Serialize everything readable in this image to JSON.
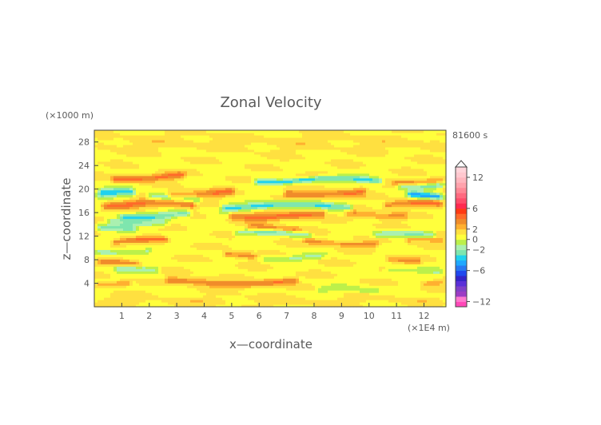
{
  "chart_data": {
    "type": "heatmap",
    "title": "Zonal Velocity",
    "xlabel": "x—coordinate",
    "ylabel": "z—coordinate",
    "x_unit": "(×1E4 m)",
    "y_unit": "(×1000 m)",
    "time_label": "81600 s",
    "xlim": [
      0,
      12.8
    ],
    "ylim": [
      0,
      30
    ],
    "x_ticks": [
      "1",
      "2",
      "3",
      "4",
      "5",
      "6",
      "7",
      "8",
      "9",
      "10",
      "11",
      "12"
    ],
    "y_ticks": [
      "4",
      "8",
      "12",
      "16",
      "20",
      "24",
      "28"
    ],
    "colorbar": {
      "tick_labels": [
        "12",
        "6",
        "2",
        "0",
        "−2",
        "−6",
        "−12"
      ],
      "levels": [
        -13,
        -12,
        -11,
        -10,
        -9,
        -8,
        -7,
        -6,
        -5,
        -4,
        -3,
        -2,
        -1,
        0,
        1,
        2,
        3,
        4,
        5,
        6,
        7,
        8,
        9,
        10,
        11,
        12,
        13,
        14
      ],
      "colors": [
        "#ff48b8",
        "#ff78cf",
        "#9c3cc4",
        "#8040c8",
        "#5a30d8",
        "#3424c8",
        "#1f48ee",
        "#2878f2",
        "#1fa8ff",
        "#20d2ee",
        "#7ee6ae",
        "#aaf0b0",
        "#bcf04a",
        "#ffff3c",
        "#ffe040",
        "#ffb030",
        "#f08c2a",
        "#ff6a2a",
        "#ff3a14",
        "#ff2a50",
        "#ff4d6a",
        "#ff6a80",
        "#ff8896",
        "#ffa2ac",
        "#ffb6be",
        "#ffc8cf",
        "#ffd4da"
      ]
    },
    "bands": [
      {
        "z": 28.0,
        "w": 1.4,
        "amp": 0.6,
        "x0": 0,
        "x1": 12.8
      },
      {
        "z": 22.1,
        "w": 0.6,
        "amp": 3.5,
        "x0": 0.5,
        "x1": 3.4
      },
      {
        "z": 22.0,
        "w": 0.4,
        "amp": 1.6,
        "x0": 6.5,
        "x1": 8.2
      },
      {
        "z": 21.6,
        "w": 0.5,
        "amp": -4.2,
        "x0": 5.7,
        "x1": 10.6
      },
      {
        "z": 21.5,
        "w": 0.5,
        "amp": 2.8,
        "x0": 10.8,
        "x1": 12.8
      },
      {
        "z": 20.8,
        "w": 0.5,
        "amp": -3.0,
        "x0": 10.9,
        "x1": 12.8
      },
      {
        "z": 19.2,
        "w": 0.7,
        "amp": -4.5,
        "x0": 0,
        "x1": 1.6
      },
      {
        "z": 19.4,
        "w": 0.7,
        "amp": 3.0,
        "x0": 2.6,
        "x1": 5.2
      },
      {
        "z": 19.4,
        "w": 0.7,
        "amp": 3.2,
        "x0": 6.8,
        "x1": 10.0
      },
      {
        "z": 19.0,
        "w": 0.6,
        "amp": -5.0,
        "x0": 11.3,
        "x1": 12.8
      },
      {
        "z": 18.6,
        "w": 0.6,
        "amp": -2.8,
        "x0": 1.8,
        "x1": 4.0
      },
      {
        "z": 17.2,
        "w": 0.6,
        "amp": -4.0,
        "x0": 4.5,
        "x1": 9.5
      },
      {
        "z": 17.4,
        "w": 0.7,
        "amp": 3.4,
        "x0": 0.2,
        "x1": 3.8
      },
      {
        "z": 17.4,
        "w": 0.6,
        "amp": 3.2,
        "x0": 10.4,
        "x1": 12.8
      },
      {
        "z": 15.6,
        "w": 0.6,
        "amp": -3.6,
        "x0": 0.8,
        "x1": 3.6
      },
      {
        "z": 15.6,
        "w": 0.7,
        "amp": 3.5,
        "x0": 4.8,
        "x1": 8.5
      },
      {
        "z": 15.8,
        "w": 0.6,
        "amp": 2.5,
        "x0": 9.0,
        "x1": 11.5
      },
      {
        "z": 14.6,
        "w": 0.6,
        "amp": -2.5,
        "x0": 0.3,
        "x1": 2.8
      },
      {
        "z": 13.2,
        "w": 0.6,
        "amp": -3.0,
        "x0": 0,
        "x1": 1.6
      },
      {
        "z": 13.5,
        "w": 0.5,
        "amp": 2.4,
        "x0": 5.5,
        "x1": 7.6
      },
      {
        "z": 12.4,
        "w": 0.5,
        "amp": -2.6,
        "x0": 5.0,
        "x1": 8.0
      },
      {
        "z": 12.2,
        "w": 0.6,
        "amp": -2.6,
        "x0": 10.0,
        "x1": 12.5
      },
      {
        "z": 11.2,
        "w": 0.5,
        "amp": 3.0,
        "x0": 0.5,
        "x1": 2.8
      },
      {
        "z": 11.0,
        "w": 0.5,
        "amp": 2.6,
        "x0": 7.5,
        "x1": 10.5
      },
      {
        "z": 11.2,
        "w": 0.5,
        "amp": 2.2,
        "x0": 11.2,
        "x1": 12.8
      },
      {
        "z": 9.6,
        "w": 0.5,
        "amp": -2.2,
        "x0": 0,
        "x1": 2.2
      },
      {
        "z": 8.8,
        "w": 0.5,
        "amp": 3.0,
        "x0": 4.6,
        "x1": 6.0
      },
      {
        "z": 8.6,
        "w": 0.5,
        "amp": -2.0,
        "x0": 6.0,
        "x1": 8.5
      },
      {
        "z": 8.2,
        "w": 0.5,
        "amp": 2.4,
        "x0": 10.5,
        "x1": 12.0
      },
      {
        "z": 7.4,
        "w": 0.5,
        "amp": 2.4,
        "x0": 0,
        "x1": 1.8
      },
      {
        "z": 6.2,
        "w": 0.5,
        "amp": -2.2,
        "x0": 0.6,
        "x1": 2.5
      },
      {
        "z": 6.0,
        "w": 0.5,
        "amp": -1.8,
        "x0": 10.5,
        "x1": 12.8
      },
      {
        "z": 4.2,
        "w": 0.6,
        "amp": 3.2,
        "x0": 2.5,
        "x1": 7.5
      },
      {
        "z": 4.2,
        "w": 0.5,
        "amp": 2.6,
        "x0": 0,
        "x1": 1.4
      },
      {
        "z": 3.8,
        "w": 0.5,
        "amp": 2.2,
        "x0": 11.8,
        "x1": 12.8
      },
      {
        "z": 2.8,
        "w": 0.5,
        "amp": -1.8,
        "x0": 8.0,
        "x1": 10.5
      },
      {
        "z": 1.0,
        "w": 0.8,
        "amp": 0.6,
        "x0": 0,
        "x1": 12.8
      }
    ]
  }
}
